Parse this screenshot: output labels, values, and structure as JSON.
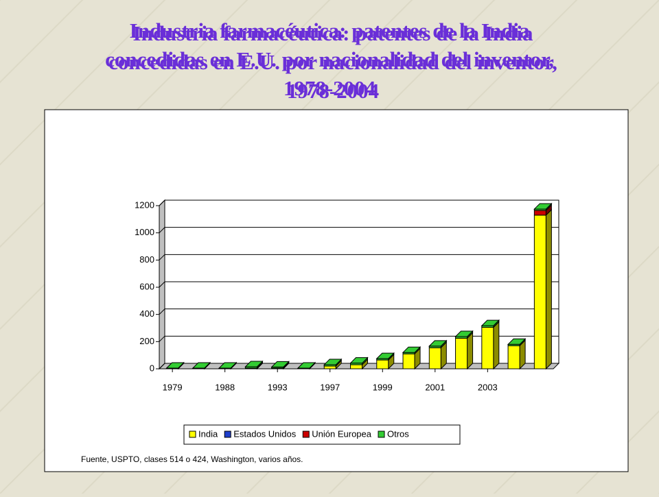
{
  "chart_data": {
    "type": "bar",
    "stacked": true,
    "title_lines": [
      "Industria farmacéutica: patentes de la India",
      "concedidas en E.U. por nacionalidad del inventor,",
      "1978-2004"
    ],
    "categories": [
      "1979",
      null,
      "1988",
      null,
      "1993",
      null,
      "1997",
      null,
      "1999",
      null,
      "2001",
      null,
      "2003",
      null,
      null
    ],
    "series": [
      {
        "name": "India",
        "color": "#ffff00",
        "values": [
          2,
          2,
          2,
          5,
          5,
          2,
          20,
          30,
          65,
          110,
          155,
          225,
          305,
          170,
          1130
        ]
      },
      {
        "name": "Estados Unidos",
        "color": "#1f3fcc",
        "values": [
          0,
          0,
          0,
          0,
          0,
          0,
          0,
          0,
          0,
          0,
          0,
          0,
          0,
          0,
          0
        ]
      },
      {
        "name": "Unión Europea",
        "color": "#cc0000",
        "values": [
          0,
          0,
          0,
          0,
          0,
          0,
          0,
          0,
          0,
          0,
          0,
          0,
          0,
          0,
          35
        ]
      },
      {
        "name": "Otros",
        "color": "#33cc33",
        "values": [
          3,
          3,
          3,
          10,
          8,
          3,
          10,
          12,
          10,
          10,
          12,
          12,
          12,
          10,
          10
        ]
      }
    ],
    "ylim": [
      0,
      1200
    ],
    "yticks": [
      0,
      200,
      400,
      600,
      800,
      1000,
      1200
    ],
    "grid": true,
    "legend": "bottom",
    "source": "Fuente, USPTO, clases 514 o 424, Washington, varios años."
  }
}
